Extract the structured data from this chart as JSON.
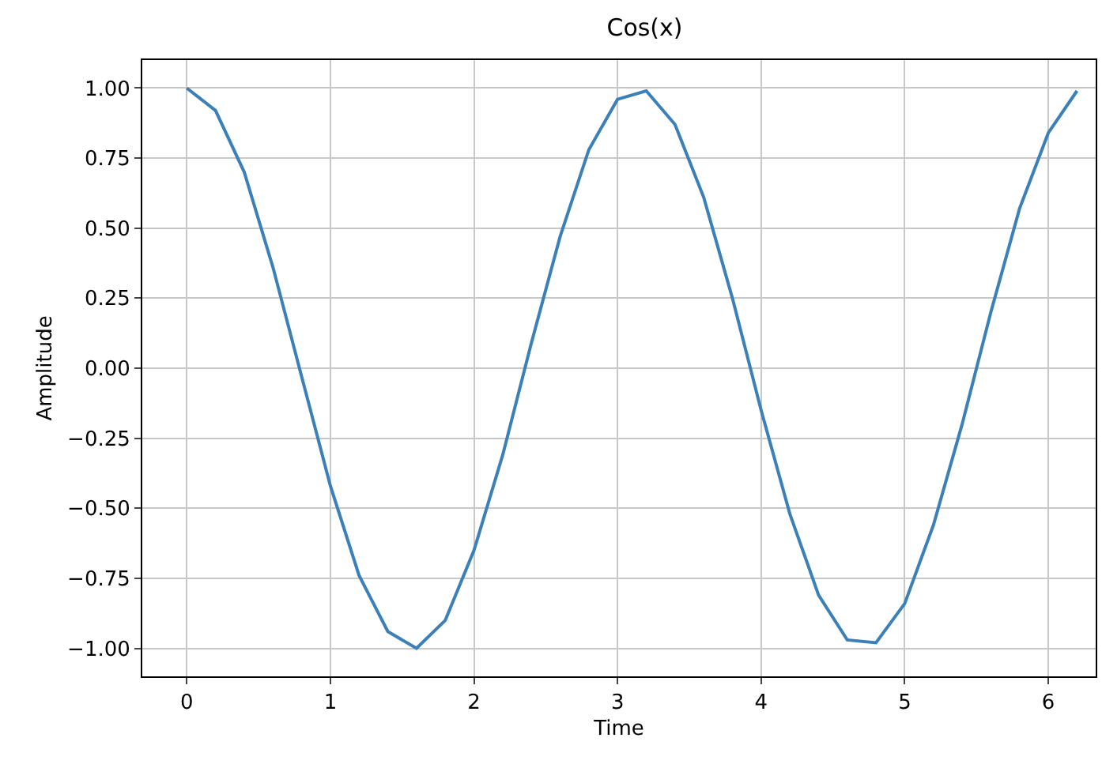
{
  "chart_data": {
    "type": "line",
    "title": "Cos(x)",
    "xlabel": "Time",
    "ylabel": "Amplitude",
    "x": [
      0,
      0.2,
      0.4,
      0.6,
      0.8,
      1.0,
      1.2,
      1.4,
      1.6,
      1.8,
      2.0,
      2.2,
      2.4,
      2.6,
      2.8,
      3.0,
      3.2,
      3.4,
      3.6,
      3.8,
      4.0,
      4.2,
      4.4,
      4.6,
      4.8,
      5.0,
      5.2,
      5.4,
      5.6,
      5.8,
      6.0,
      6.2
    ],
    "series": [
      {
        "color": "#3b80b9",
        "values": [
          1.0,
          0.92,
          0.7,
          0.36,
          -0.03,
          -0.42,
          -0.74,
          -0.94,
          -1.0,
          -0.9,
          -0.65,
          -0.31,
          0.09,
          0.47,
          0.78,
          0.96,
          0.99,
          0.87,
          0.61,
          0.25,
          -0.15,
          -0.52,
          -0.81,
          -0.97,
          -0.98,
          -0.84,
          -0.56,
          -0.2,
          0.2,
          0.57,
          0.84,
          0.99
        ]
      }
    ],
    "xlim": [
      -0.31,
      6.33
    ],
    "ylim": [
      -1.1,
      1.1
    ],
    "xticks": [
      0,
      1,
      2,
      3,
      4,
      5,
      6
    ],
    "yticks": [
      {
        "value": -1,
        "label": "−1.00"
      },
      {
        "value": -0.75,
        "label": "−0.75"
      },
      {
        "value": -0.5,
        "label": "−0.50"
      },
      {
        "value": -0.25,
        "label": "−0.25"
      },
      {
        "value": 0,
        "label": "0.00"
      },
      {
        "value": 0.25,
        "label": "0.25"
      },
      {
        "value": 0.5,
        "label": "0.50"
      },
      {
        "value": 0.75,
        "label": "0.75"
      },
      {
        "value": 1,
        "label": "1.00"
      }
    ],
    "grid": true,
    "legend": false,
    "marker": "none",
    "line_style": "solid"
  }
}
